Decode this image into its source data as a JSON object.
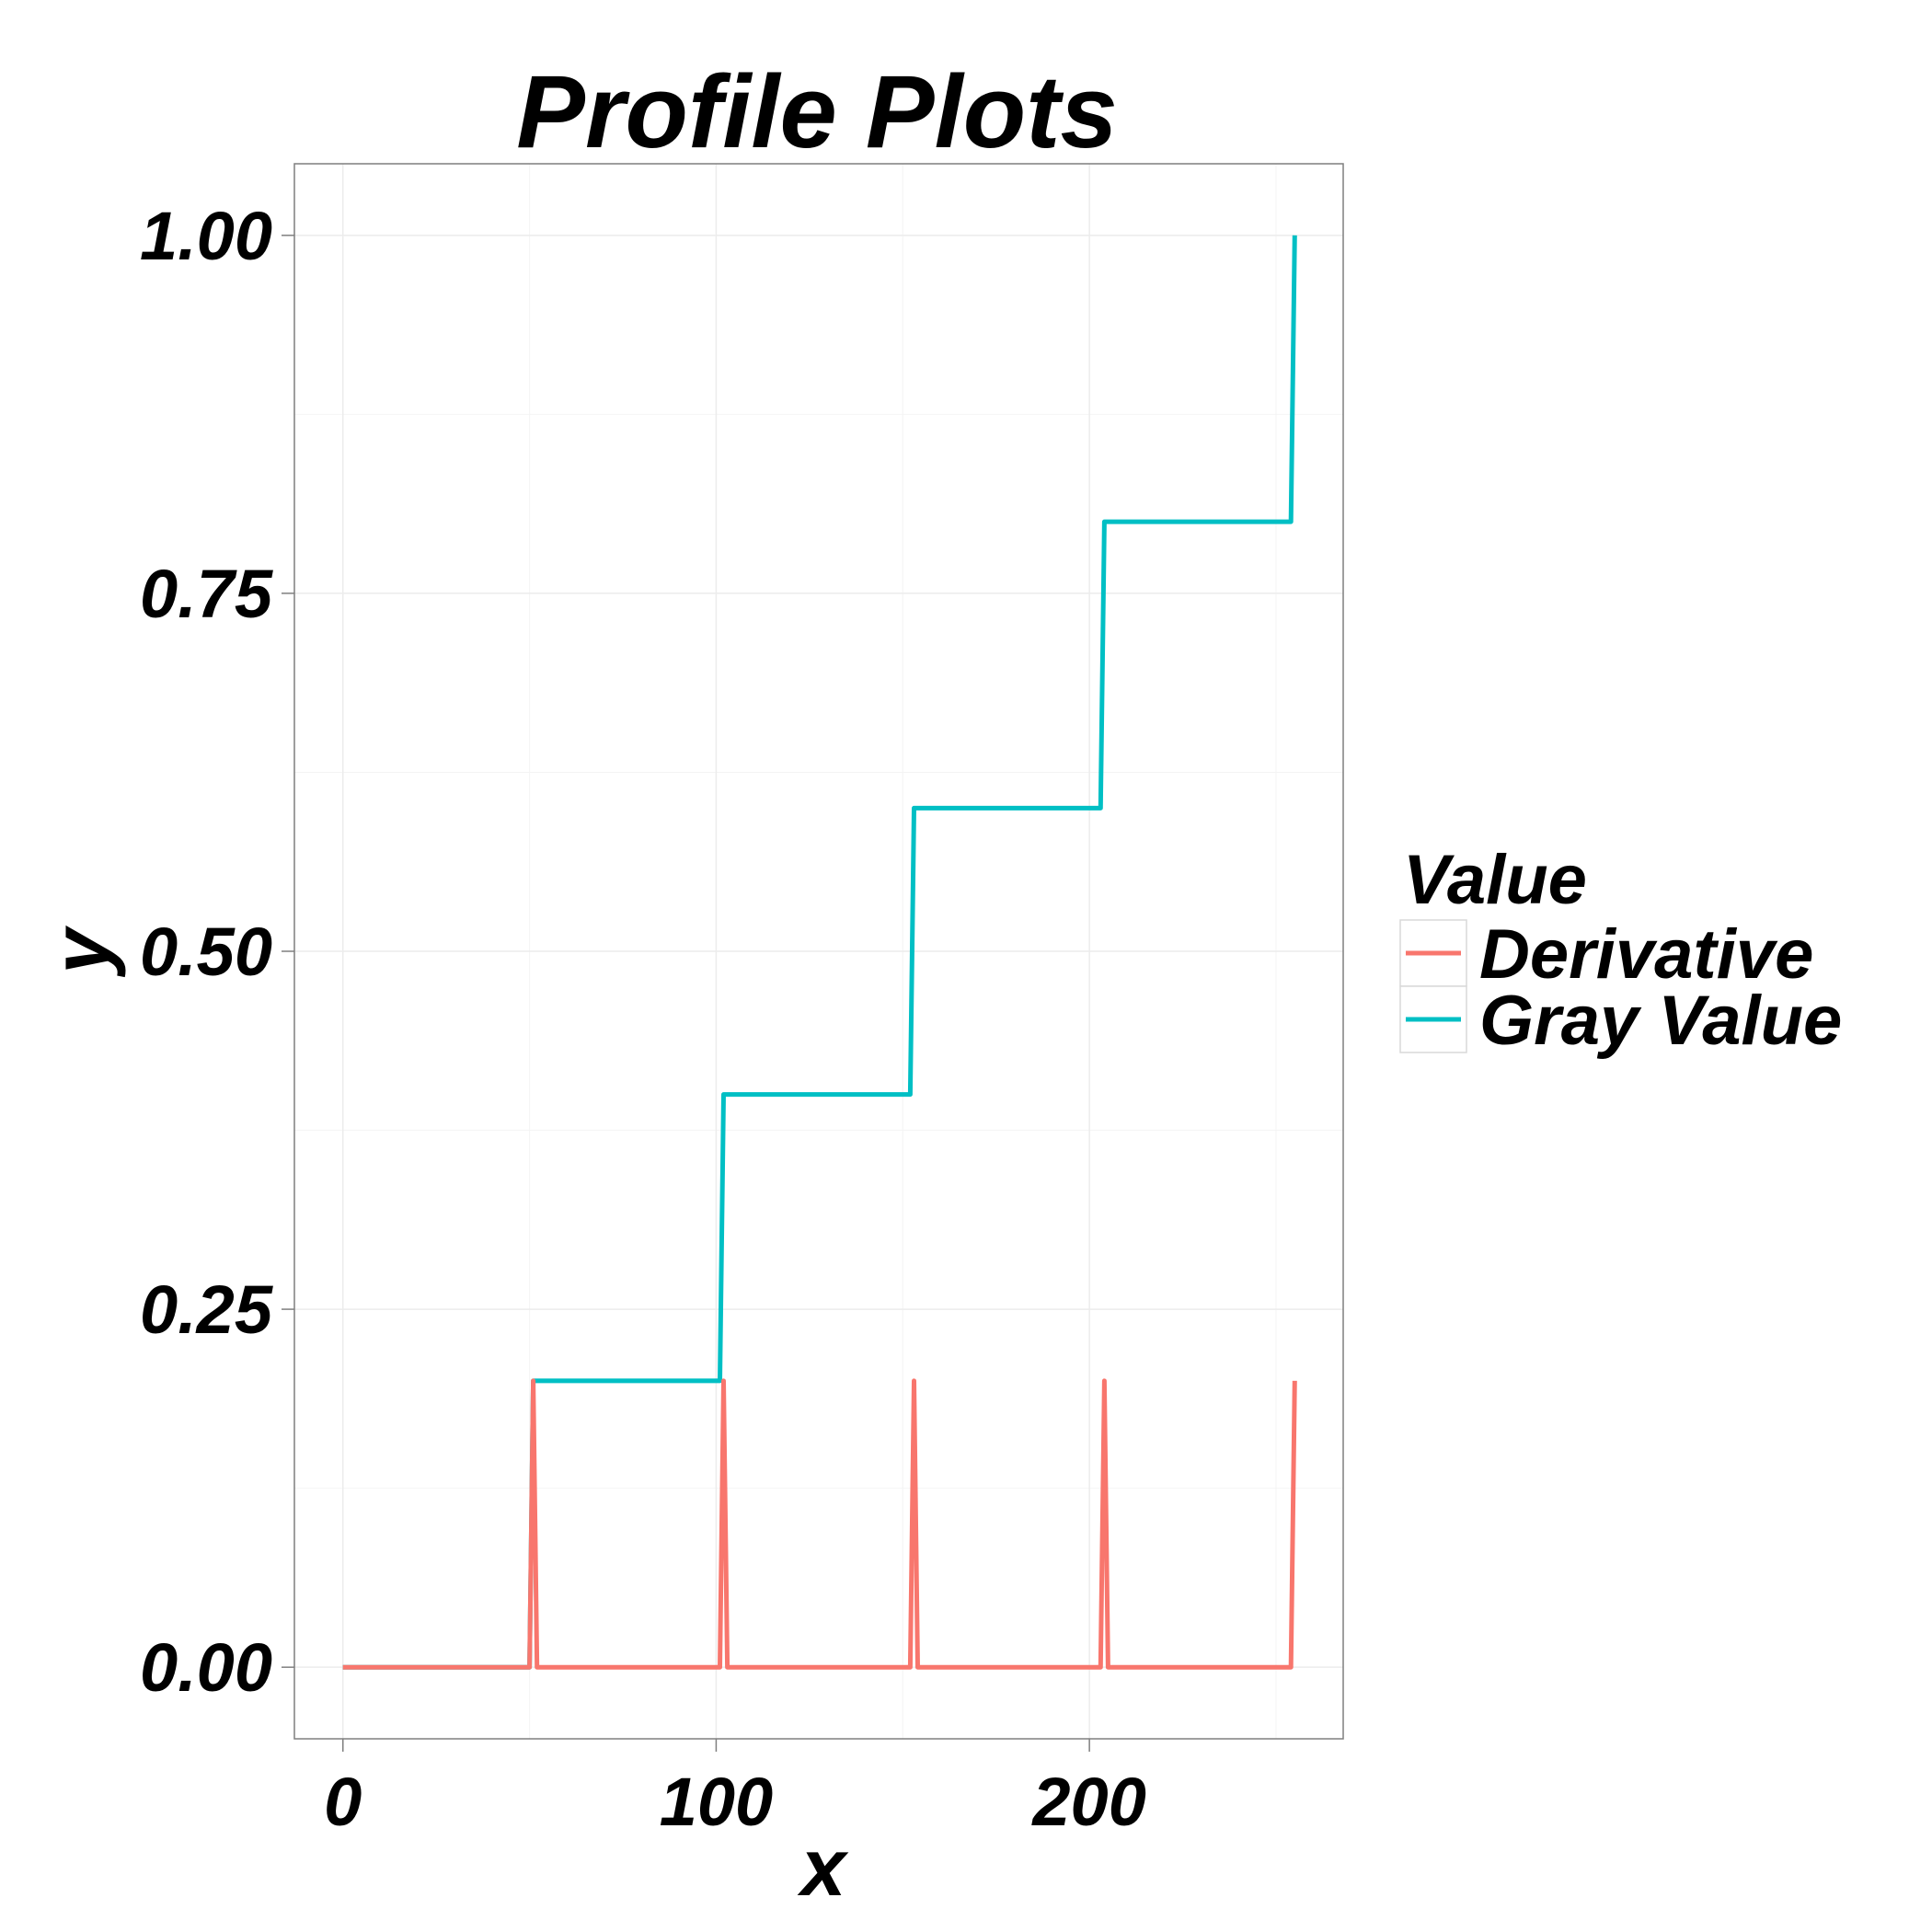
{
  "chart_data": {
    "type": "line",
    "title": "Profile Plots",
    "xlabel": "x",
    "ylabel": "y",
    "xlim": [
      -13,
      268
    ],
    "ylim": [
      -0.05,
      1.05
    ],
    "x_ticks": [
      "0",
      "100",
      "200"
    ],
    "y_ticks": [
      "0.00",
      "0.25",
      "0.50",
      "0.75",
      "1.00"
    ],
    "grid": true,
    "legend": {
      "title": "Value",
      "position": "right",
      "entries": [
        "Derivative",
        "Gray Value"
      ]
    },
    "series": [
      {
        "name": "Gray Value",
        "color": "#00BFC4",
        "x": [
          0,
          50,
          51,
          101,
          102,
          152,
          153,
          203,
          204,
          254,
          255
        ],
        "y": [
          0,
          0,
          0.2,
          0.2,
          0.4,
          0.4,
          0.6,
          0.6,
          0.8,
          0.8,
          1.0
        ]
      },
      {
        "name": "Derivative",
        "color": "#F8766D",
        "x": [
          0,
          50,
          51,
          52,
          101,
          102,
          103,
          152,
          153,
          154,
          203,
          204,
          205,
          254,
          255
        ],
        "y": [
          0,
          0,
          0.2,
          0,
          0,
          0.2,
          0,
          0,
          0.2,
          0,
          0,
          0.2,
          0,
          0,
          0.2
        ]
      }
    ]
  }
}
